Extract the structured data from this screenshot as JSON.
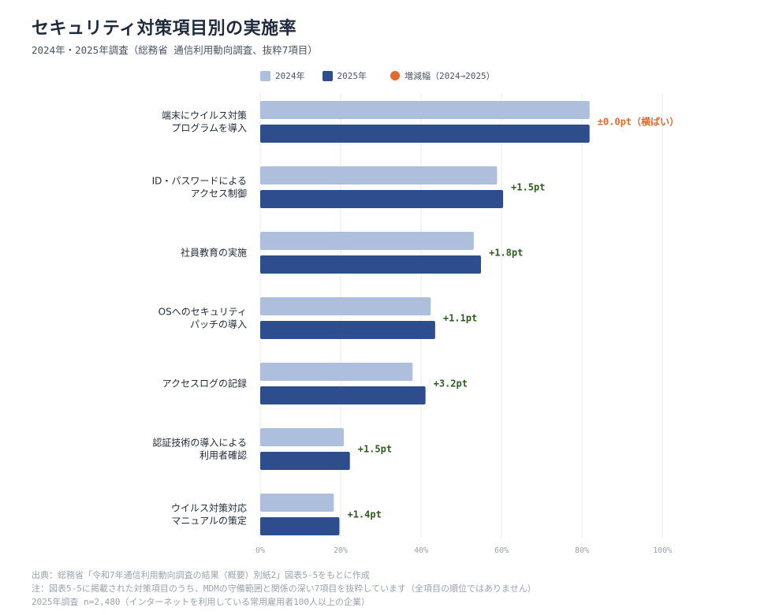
{
  "title": "セキュリティ対策項目別の実施率",
  "subtitle": "2024年・2025年調査（総務省 通信利用動向調査、抜粋7項目）",
  "colors": {
    "s2024": "#aebedd",
    "s2025": "#2e4d8c",
    "change_pos": "#2e5d1e",
    "change_flat": "#e26a2c",
    "grid": "#e8eaee",
    "tick": "#9aa2ae",
    "label": "#222b3a"
  },
  "legend": {
    "s2024": "2024年",
    "s2025": "2025年",
    "change": "増減幅（2024→2025）"
  },
  "chart_data": {
    "type": "bar",
    "orientation": "horizontal",
    "categories": [
      [
        "端末にウイルス対策",
        "プログラムを導入"
      ],
      [
        "ID・パスワードによる",
        "アクセス制御"
      ],
      [
        "社員教育の実施"
      ],
      [
        "OSへのセキュリティ",
        "パッチの導入"
      ],
      [
        "アクセスログの記録"
      ],
      [
        "認証技術の導入による",
        "利用者確認"
      ],
      [
        "ウイルス対策対応",
        "マニュアルの策定"
      ]
    ],
    "series": [
      {
        "name": "2024年",
        "values": [
          81.9,
          58.9,
          53.1,
          42.4,
          37.9,
          20.8,
          18.3
        ]
      },
      {
        "name": "2025年",
        "values": [
          81.9,
          60.4,
          54.9,
          43.5,
          41.1,
          22.3,
          19.7
        ]
      }
    ],
    "changes": [
      "±0.0pt（横ばい）",
      "+1.5pt",
      "+1.8pt",
      "+1.1pt",
      "+3.2pt",
      "+1.5pt",
      "+1.4pt"
    ],
    "xlim": [
      0,
      100
    ],
    "xticks": [
      "0%",
      "20%",
      "40%",
      "60%",
      "80%",
      "100%"
    ],
    "xtick_values": [
      0,
      20,
      40,
      60,
      80,
      100
    ],
    "grid": true,
    "legend_position": "top"
  },
  "footer": {
    "source": "出典：総務省「令和7年通信利用動向調査の結果（概要）別紙2」図表5-5をもとに作成",
    "note": "注：図表5-5に掲載された対策項目のうち、MDMの守備範囲と関係の深い7項目を抜粋しています（全項目の順位ではありません）",
    "sample": "2025年調査 n=2,480（インターネットを利用している常用雇用者100人以上の企業）"
  }
}
